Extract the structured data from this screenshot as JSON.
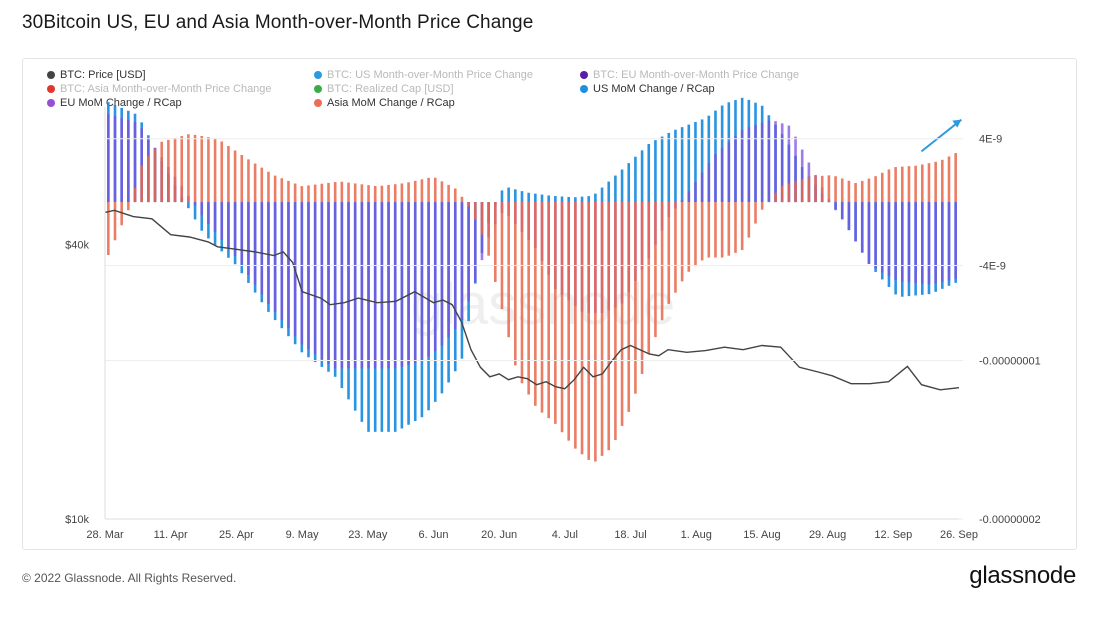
{
  "page": {
    "title": "30Bitcoin US, EU and Asia Month-over-Month Price Change",
    "copyright": "© 2022 Glassnode. All Rights Reserved.",
    "brand": "glassnode",
    "watermark": "glassnode"
  },
  "colors": {
    "price": "#444444",
    "us": "#2b9be0",
    "eu_legend": "#5a1ea8",
    "asia_legend": "#e0382f",
    "rcap": "#3bab4a",
    "us_rcap": "#1f8ee0",
    "eu_rcap": "#9550d6",
    "asia_rcap": "#ea6e55",
    "eu_bar": "#7d4fe0",
    "asia_bar": "#e8664a",
    "arrow": "#2b9be0"
  },
  "chart_data": {
    "type": "bar",
    "title": "30Bitcoin US, EU and Asia Month-over-Month Price Change",
    "legend": [
      {
        "name": "BTC: Price [USD]",
        "color_key": "price",
        "muted": false
      },
      {
        "name": "BTC: US Month-over-Month Price Change",
        "color_key": "us",
        "muted": true
      },
      {
        "name": "BTC: EU Month-over-Month Price Change",
        "color_key": "eu_legend",
        "muted": true
      },
      {
        "name": "BTC: Asia Month-over-Month Price Change",
        "color_key": "asia_legend",
        "muted": true
      },
      {
        "name": "BTC: Realized Cap [USD]",
        "color_key": "rcap",
        "muted": true
      },
      {
        "name": "US MoM Change / RCap",
        "color_key": "us_rcap",
        "muted": false
      },
      {
        "name": "EU MoM Change / RCap",
        "color_key": "eu_rcap",
        "muted": false
      },
      {
        "name": "Asia MoM Change / RCap",
        "color_key": "asia_rcap",
        "muted": false
      }
    ],
    "legend_placement": "top-left",
    "x_ticks": [
      "28. Mar",
      "11. Apr",
      "25. Apr",
      "9. May",
      "23. May",
      "6. Jun",
      "20. Jun",
      "4. Jul",
      "18. Jul",
      "1. Aug",
      "15. Aug",
      "29. Aug",
      "12. Sep",
      "26. Sep"
    ],
    "x_range_days": [
      0,
      182
    ],
    "y_left": {
      "ticks": [
        "$40k",
        "$10k"
      ],
      "values": [
        40000,
        10000
      ],
      "scale": "log",
      "range": [
        10000,
        80000
      ]
    },
    "y_right": {
      "ticks": [
        "4E-9",
        "-4E-9",
        "-0.00000001",
        "-0.00000002"
      ],
      "values": [
        4e-09,
        -4e-09,
        -1e-08,
        -2e-08
      ],
      "range": [
        -2e-08,
        6e-09
      ]
    },
    "series_keys": {
      "us": {
        "name": "US MoM Change / RCap",
        "points": [
          [
            0,
            6.4e-09
          ],
          [
            7,
            5.5e-09
          ],
          [
            14,
            1.5e-09
          ],
          [
            21,
            -2e-09
          ],
          [
            28,
            -4e-09
          ],
          [
            35,
            -7e-09
          ],
          [
            42,
            -9.5e-09
          ],
          [
            49,
            -1.1e-08
          ],
          [
            56,
            -1.45e-08
          ],
          [
            62,
            -1.45e-08
          ],
          [
            68,
            -1.35e-08
          ],
          [
            72,
            -1.2e-08
          ],
          [
            76,
            -1e-08
          ],
          [
            79,
            -5e-09
          ],
          [
            82,
            -1e-09
          ],
          [
            85,
            1e-09
          ],
          [
            90,
            6e-10
          ],
          [
            95,
            4e-10
          ],
          [
            100,
            3e-10
          ],
          [
            104,
            4e-10
          ],
          [
            110,
            2e-09
          ],
          [
            116,
            3.7e-09
          ],
          [
            121,
            4.5e-09
          ],
          [
            128,
            5.3e-09
          ],
          [
            132,
            6.2e-09
          ],
          [
            136,
            6.6e-09
          ],
          [
            140,
            6.1e-09
          ],
          [
            145,
            4e-09
          ],
          [
            149,
            2e-09
          ],
          [
            153,
            5e-10
          ],
          [
            157,
            -1e-09
          ],
          [
            163,
            -4e-09
          ],
          [
            169,
            -6e-09
          ],
          [
            176,
            -5.8e-09
          ],
          [
            182,
            -5e-09
          ]
        ]
      },
      "eu": {
        "name": "EU MoM Change / RCap",
        "points": [
          [
            0,
            5.6e-09
          ],
          [
            7,
            5e-09
          ],
          [
            14,
            2e-09
          ],
          [
            21,
            -1e-09
          ],
          [
            28,
            -3.5e-09
          ],
          [
            35,
            -6.5e-09
          ],
          [
            42,
            -9e-09
          ],
          [
            49,
            -1.05e-08
          ],
          [
            56,
            -1.05e-08
          ],
          [
            62,
            -1.05e-08
          ],
          [
            68,
            -1e-08
          ],
          [
            72,
            -9e-09
          ],
          [
            76,
            -7.5e-09
          ],
          [
            79,
            -5e-09
          ],
          [
            82,
            -2e-09
          ],
          [
            85,
            -5e-10
          ],
          [
            92,
            -3e-09
          ],
          [
            96,
            -5.5e-09
          ],
          [
            102,
            -7e-09
          ],
          [
            106,
            -7e-09
          ],
          [
            110,
            -6.5e-09
          ],
          [
            116,
            -3.5e-09
          ],
          [
            120,
            -1e-09
          ],
          [
            124,
            5e-10
          ],
          [
            130,
            3e-09
          ],
          [
            136,
            4.6e-09
          ],
          [
            142,
            5.2e-09
          ],
          [
            146,
            4.8e-09
          ],
          [
            150,
            2.5e-09
          ],
          [
            154,
            3e-10
          ],
          [
            158,
            -1.5e-09
          ],
          [
            163,
            -4e-09
          ],
          [
            169,
            -5e-09
          ],
          [
            176,
            -5.2e-09
          ],
          [
            182,
            -4.8e-09
          ]
        ]
      },
      "asia": {
        "name": "Asia MoM Change / RCap",
        "points": [
          [
            0,
            -3.8e-09
          ],
          [
            2,
            -2.5e-09
          ],
          [
            5,
            -5e-10
          ],
          [
            8,
            2.5e-09
          ],
          [
            12,
            3.8e-09
          ],
          [
            18,
            4.3e-09
          ],
          [
            24,
            4e-09
          ],
          [
            30,
            2.8e-09
          ],
          [
            36,
            1.7e-09
          ],
          [
            42,
            1e-09
          ],
          [
            50,
            1.3e-09
          ],
          [
            58,
            1e-09
          ],
          [
            64,
            1.2e-09
          ],
          [
            70,
            1.6e-09
          ],
          [
            75,
            8e-10
          ],
          [
            78,
            -5e-10
          ],
          [
            81,
            -2.5e-09
          ],
          [
            84,
            -6e-09
          ],
          [
            88,
            -1.1e-08
          ],
          [
            92,
            -1.3e-08
          ],
          [
            96,
            -1.4e-08
          ],
          [
            100,
            -1.55e-08
          ],
          [
            104,
            -1.65e-08
          ],
          [
            108,
            -1.55e-08
          ],
          [
            112,
            -1.3e-08
          ],
          [
            116,
            -9.5e-09
          ],
          [
            120,
            -6.5e-09
          ],
          [
            124,
            -4.5e-09
          ],
          [
            128,
            -3.5e-09
          ],
          [
            132,
            -3.5e-09
          ],
          [
            136,
            -3e-09
          ],
          [
            140,
            -5e-10
          ],
          [
            144,
            1e-09
          ],
          [
            150,
            1.6e-09
          ],
          [
            155,
            1.7e-09
          ],
          [
            160,
            1.2e-09
          ],
          [
            164,
            1.6e-09
          ],
          [
            168,
            2.2e-09
          ],
          [
            173,
            2.3e-09
          ],
          [
            178,
            2.6e-09
          ],
          [
            182,
            3.2e-09
          ]
        ]
      },
      "price": {
        "name": "BTC: Price [USD]",
        "unit": "USD",
        "points": [
          [
            0,
            47000
          ],
          [
            2,
            47500
          ],
          [
            6,
            46000
          ],
          [
            10,
            45500
          ],
          [
            14,
            42000
          ],
          [
            18,
            41500
          ],
          [
            22,
            40500
          ],
          [
            24,
            39500
          ],
          [
            28,
            39000
          ],
          [
            32,
            38500
          ],
          [
            36,
            37800
          ],
          [
            38,
            38500
          ],
          [
            40,
            36500
          ],
          [
            42,
            31500
          ],
          [
            46,
            30500
          ],
          [
            48,
            29500
          ],
          [
            51,
            29800
          ],
          [
            54,
            30500
          ],
          [
            58,
            29800
          ],
          [
            62,
            30000
          ],
          [
            66,
            31500
          ],
          [
            70,
            29800
          ],
          [
            72,
            30200
          ],
          [
            74,
            29500
          ],
          [
            76,
            27000
          ],
          [
            78,
            23500
          ],
          [
            80,
            21500
          ],
          [
            82,
            20500
          ],
          [
            84,
            20800
          ],
          [
            86,
            20200
          ],
          [
            88,
            20500
          ],
          [
            90,
            20300
          ],
          [
            92,
            19700
          ],
          [
            94,
            20000
          ],
          [
            96,
            19500
          ],
          [
            98,
            19300
          ],
          [
            100,
            20200
          ],
          [
            102,
            21500
          ],
          [
            104,
            20500
          ],
          [
            106,
            20800
          ],
          [
            108,
            22200
          ],
          [
            110,
            23500
          ],
          [
            112,
            24000
          ],
          [
            116,
            23000
          ],
          [
            118,
            22800
          ],
          [
            120,
            23500
          ],
          [
            124,
            23200
          ],
          [
            128,
            23400
          ],
          [
            132,
            23800
          ],
          [
            136,
            23500
          ],
          [
            140,
            24000
          ],
          [
            144,
            23800
          ],
          [
            148,
            21500
          ],
          [
            152,
            21000
          ],
          [
            155,
            20600
          ],
          [
            159,
            19800
          ],
          [
            163,
            19800
          ],
          [
            167,
            20000
          ],
          [
            171,
            21600
          ],
          [
            174,
            19700
          ],
          [
            178,
            19200
          ],
          [
            182,
            19400
          ]
        ]
      }
    },
    "annotation": "blue arrow near end pointing up-right"
  }
}
